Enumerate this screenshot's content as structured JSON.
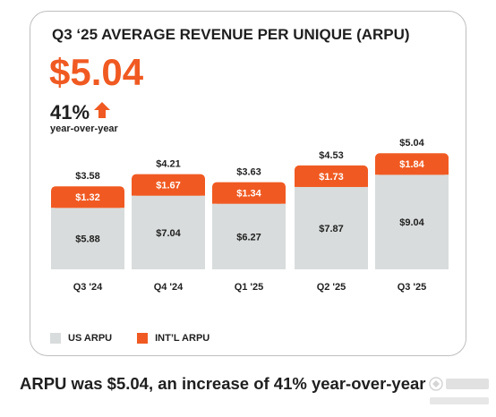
{
  "colors": {
    "us": "#d9dcdc",
    "intl": "#f05a22",
    "text": "#1f1f1f",
    "intl_label": "#ffffff"
  },
  "title": "Q3 ‘25 AVERAGE REVENUE PER UNIQUE (ARPU)",
  "headline": "$5.04",
  "growth": {
    "value": "41%",
    "label": "year-over-year",
    "icon": "arrow-up-icon"
  },
  "legend": {
    "us": "US ARPU",
    "intl": "INT’L ARPU"
  },
  "caption": "ARPU was $5.04, an increase of 41% year-over-year",
  "chart_data": {
    "type": "bar",
    "stacked": false,
    "categories": [
      "Q3 '24",
      "Q4 '24",
      "Q1 '25",
      "Q2 '25",
      "Q3 '25"
    ],
    "series": [
      {
        "name": "US ARPU",
        "values": [
          5.88,
          7.04,
          6.27,
          7.87,
          9.04
        ],
        "labels": [
          "$5.88",
          "$7.04",
          "$6.27",
          "$7.87",
          "$9.04"
        ]
      },
      {
        "name": "INT’L ARPU",
        "values": [
          1.32,
          1.67,
          1.34,
          1.73,
          1.84
        ],
        "labels": [
          "$1.32",
          "$1.67",
          "$1.34",
          "$1.73",
          "$1.84"
        ]
      }
    ],
    "totals": {
      "values": [
        3.58,
        4.21,
        3.63,
        4.53,
        5.04
      ],
      "labels": [
        "$3.58",
        "$4.21",
        "$3.63",
        "$4.53",
        "$5.04"
      ]
    },
    "grid": false,
    "legend_position": "bottom-left"
  }
}
